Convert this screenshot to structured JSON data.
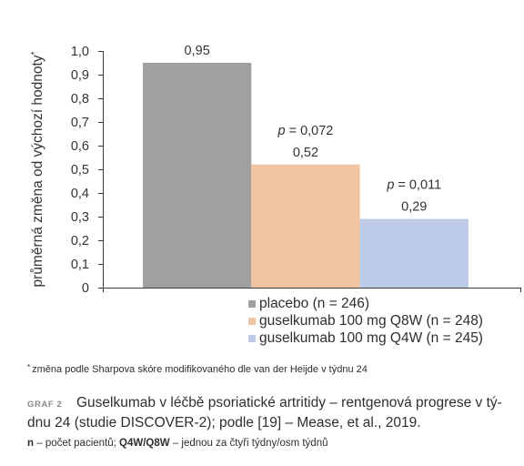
{
  "chart_data": {
    "type": "bar",
    "ylabel": "průměrná změna od výchozí hodnoty",
    "ylabel_note_mark": "*",
    "ylim": [
      0,
      1
    ],
    "yticks": [
      0,
      0.1,
      0.2,
      0.3,
      0.4,
      0.5,
      0.6,
      0.7,
      0.8,
      0.9,
      1.0
    ],
    "ytick_labels": [
      "0",
      "0,1",
      "0,2",
      "0,3",
      "0,4",
      "0,5",
      "0,6",
      "0,7",
      "0,8",
      "0,9",
      "1,0"
    ],
    "categories": [
      "placebo (n = 246)",
      "guselkumab 100 mg Q8W (n = 248)",
      "guselkumab 100 mg Q4W (n = 245)"
    ],
    "values": [
      0.95,
      0.52,
      0.29
    ],
    "value_labels": [
      "0,95",
      "0,52",
      "0,29"
    ],
    "annotations": [
      {
        "bar": 1,
        "symbol": "p",
        "text": "= 0,072"
      },
      {
        "bar": 2,
        "symbol": "p",
        "text": "= 0,011"
      }
    ],
    "colors": [
      "#a0a0a0",
      "#f1c5a1",
      "#bdcbe8"
    ],
    "legend": "bottom",
    "grid": false
  },
  "footnote": {
    "mark": "*",
    "text": "změna podle Sharpova skóre modifikovaného dle van der Heijde v týdnu 24"
  },
  "caption": {
    "label": "GRAF 2",
    "line1": "Guselkumab v léčbě psoriatické artritidy – rentgenová progrese v tý-",
    "line2": "dnu 24 (studie DISCOVER-2); podle [19] – Mease, et al., 2019."
  },
  "notes": {
    "n_term": "n",
    "n_def": "– počet pacientů;",
    "q_term": "Q4W/Q8W",
    "q_def": "– jednou za čtyři týdny/osm týdnů"
  }
}
